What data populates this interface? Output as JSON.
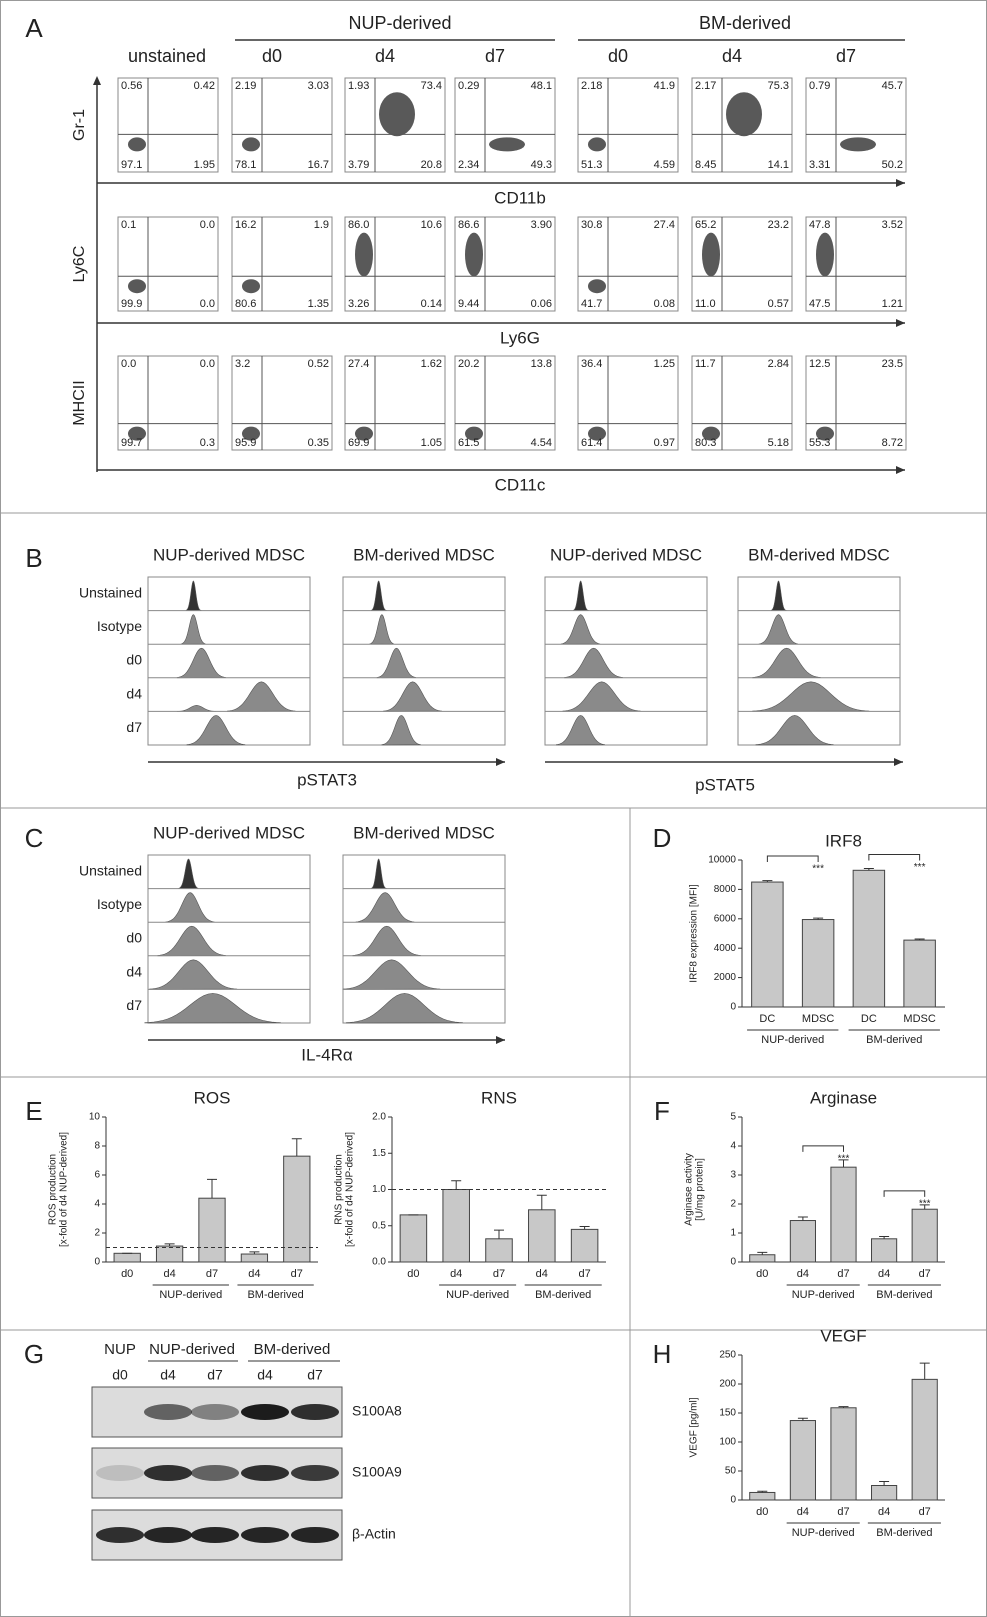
{
  "panel_letters": [
    "A",
    "B",
    "C",
    "D",
    "E",
    "F",
    "G",
    "H"
  ],
  "flow": {
    "groups": [
      "NUP-derived",
      "BM-derived"
    ],
    "unstained": "unstained",
    "timepoints": [
      "d0",
      "d4",
      "d7",
      "d0",
      "d4",
      "d7"
    ],
    "rows": [
      {
        "y_label": "Gr-1",
        "x_label": "CD11b",
        "plots": [
          [
            "0.56",
            "0.42",
            "97.1",
            "1.95"
          ],
          [
            "2.19",
            "3.03",
            "78.1",
            "16.7"
          ],
          [
            "1.93",
            "73.4",
            "3.79",
            "20.8"
          ],
          [
            "0.29",
            "48.1",
            "2.34",
            "49.3"
          ],
          [
            "2.18",
            "41.9",
            "51.3",
            "4.59"
          ],
          [
            "2.17",
            "75.3",
            "8.45",
            "14.1"
          ],
          [
            "0.79",
            "45.7",
            "3.31",
            "50.2"
          ]
        ]
      },
      {
        "y_label": "Ly6C",
        "x_label": "Ly6G",
        "plots": [
          [
            "0.1",
            "0.0",
            "99.9",
            "0.0"
          ],
          [
            "16.2",
            "1.9",
            "80.6",
            "1.35"
          ],
          [
            "86.0",
            "10.6",
            "3.26",
            "0.14"
          ],
          [
            "86.6",
            "3.90",
            "9.44",
            "0.06"
          ],
          [
            "30.8",
            "27.4",
            "41.7",
            "0.08"
          ],
          [
            "65.2",
            "23.2",
            "11.0",
            "0.57"
          ],
          [
            "47.8",
            "3.52",
            "47.5",
            "1.21"
          ]
        ]
      },
      {
        "y_label": "MHCII",
        "x_label": "CD11c",
        "plots": [
          [
            "0.0",
            "0.0",
            "99.7",
            "0.3"
          ],
          [
            "3.2",
            "0.52",
            "95.9",
            "0.35"
          ],
          [
            "27.4",
            "1.62",
            "69.9",
            "1.05"
          ],
          [
            "20.2",
            "13.8",
            "61.5",
            "4.54"
          ],
          [
            "36.4",
            "1.25",
            "61.4",
            "0.97"
          ],
          [
            "11.7",
            "2.84",
            "80.3",
            "5.18"
          ],
          [
            "12.5",
            "23.5",
            "55.3",
            "8.72"
          ]
        ]
      }
    ]
  },
  "histograms": {
    "b": {
      "titles": [
        "NUP-derived MDSC",
        "BM-derived MDSC",
        "NUP-derived MDSC",
        "BM-derived MDSC"
      ],
      "rows": [
        "Unstained",
        "Isotype",
        "d0",
        "d4",
        "d7"
      ],
      "axis_labels": [
        "pSTAT3",
        "pSTAT5"
      ]
    },
    "c": {
      "titles": [
        "NUP-derived MDSC",
        "BM-derived MDSC"
      ],
      "rows": [
        "Unstained",
        "Isotype",
        "d0",
        "d4",
        "d7"
      ],
      "axis_labels": [
        "IL-4Rα"
      ]
    }
  },
  "blot": {
    "headers": [
      "NUP",
      "NUP-derived",
      "BM-derived"
    ],
    "lanes": [
      "d0",
      "d4",
      "d7",
      "d4",
      "d7"
    ],
    "proteins": [
      "S100A8",
      "S100A9",
      "β-Actin"
    ]
  },
  "chart_data": [
    {
      "type": "bar",
      "title": "IRF8",
      "y_label": [
        "IRF8 expression [MFI]"
      ],
      "categories": [
        "DC",
        "MDSC",
        "DC",
        "MDSC"
      ],
      "values": [
        8500,
        5950,
        9300,
        4550
      ],
      "errors": [
        100,
        100,
        120,
        80
      ],
      "ylim": [
        0,
        10000
      ],
      "yticks": [
        0,
        2000,
        4000,
        6000,
        8000,
        10000
      ],
      "group_labels": [
        "NUP-derived",
        "BM-derived"
      ],
      "annotations": [
        "***",
        "***"
      ],
      "color": "#c8c8c8"
    },
    {
      "type": "bar",
      "title": "ROS",
      "y_label": [
        "ROS production",
        "[x-fold of d4 NUP-derived]"
      ],
      "categories": [
        "d0",
        "d4",
        "d7",
        "d4",
        "d7"
      ],
      "values": [
        0.6,
        1.1,
        4.4,
        0.55,
        7.3
      ],
      "errors": [
        0,
        0.15,
        1.3,
        0.15,
        1.2
      ],
      "ylim": [
        0,
        10
      ],
      "yticks": [
        0,
        2,
        4,
        6,
        8,
        10
      ],
      "group_labels": [
        "NUP-derived",
        "BM-derived"
      ],
      "reference_line": 1,
      "color": "#c8c8c8"
    },
    {
      "type": "bar",
      "title": "RNS",
      "y_label": [
        "RNS production",
        "[x-fold of d4 NUP-derived]"
      ],
      "categories": [
        "d0",
        "d4",
        "d7",
        "d4",
        "d7"
      ],
      "values": [
        0.65,
        1.0,
        0.32,
        0.72,
        0.45
      ],
      "errors": [
        0,
        0.12,
        0.12,
        0.2,
        0.04
      ],
      "ylim": [
        0,
        2
      ],
      "yticks": [
        {
          "value": 0,
          "label": "0.0"
        },
        {
          "value": 0.5,
          "label": "0.5"
        },
        {
          "value": 1,
          "label": "1.0"
        },
        {
          "value": 1.5,
          "label": "1.5"
        },
        {
          "value": 2,
          "label": "2.0"
        }
      ],
      "group_labels": [
        "NUP-derived",
        "BM-derived"
      ],
      "reference_line": 1,
      "color": "#c8c8c8"
    },
    {
      "type": "bar",
      "title": "Arginase",
      "y_label": [
        "Arginase activity",
        "[U/mg protein]"
      ],
      "categories": [
        "d0",
        "d4",
        "d7",
        "d4",
        "d7"
      ],
      "values": [
        0.25,
        1.43,
        3.27,
        0.8,
        1.82
      ],
      "errors": [
        0.08,
        0.12,
        0.25,
        0.08,
        0.15
      ],
      "ylim": [
        0,
        5
      ],
      "yticks": [
        0,
        1,
        2,
        3,
        4,
        5
      ],
      "group_labels": [
        "NUP-derived",
        "BM-derived"
      ],
      "annotations": [
        "***",
        "***"
      ],
      "color": "#c8c8c8"
    },
    {
      "type": "bar",
      "title": "VEGF",
      "y_label": [
        "VEGF [pg/ml]"
      ],
      "categories": [
        "d0",
        "d4",
        "d7",
        "d4",
        "d7"
      ],
      "values": [
        13,
        137,
        159,
        25,
        208
      ],
      "errors": [
        2,
        4,
        2,
        7,
        28
      ],
      "ylim": [
        0,
        250
      ],
      "yticks": [
        0,
        50,
        100,
        150,
        200,
        250
      ],
      "group_labels": [
        "NUP-derived",
        "BM-derived"
      ],
      "color": "#c8c8c8"
    }
  ]
}
